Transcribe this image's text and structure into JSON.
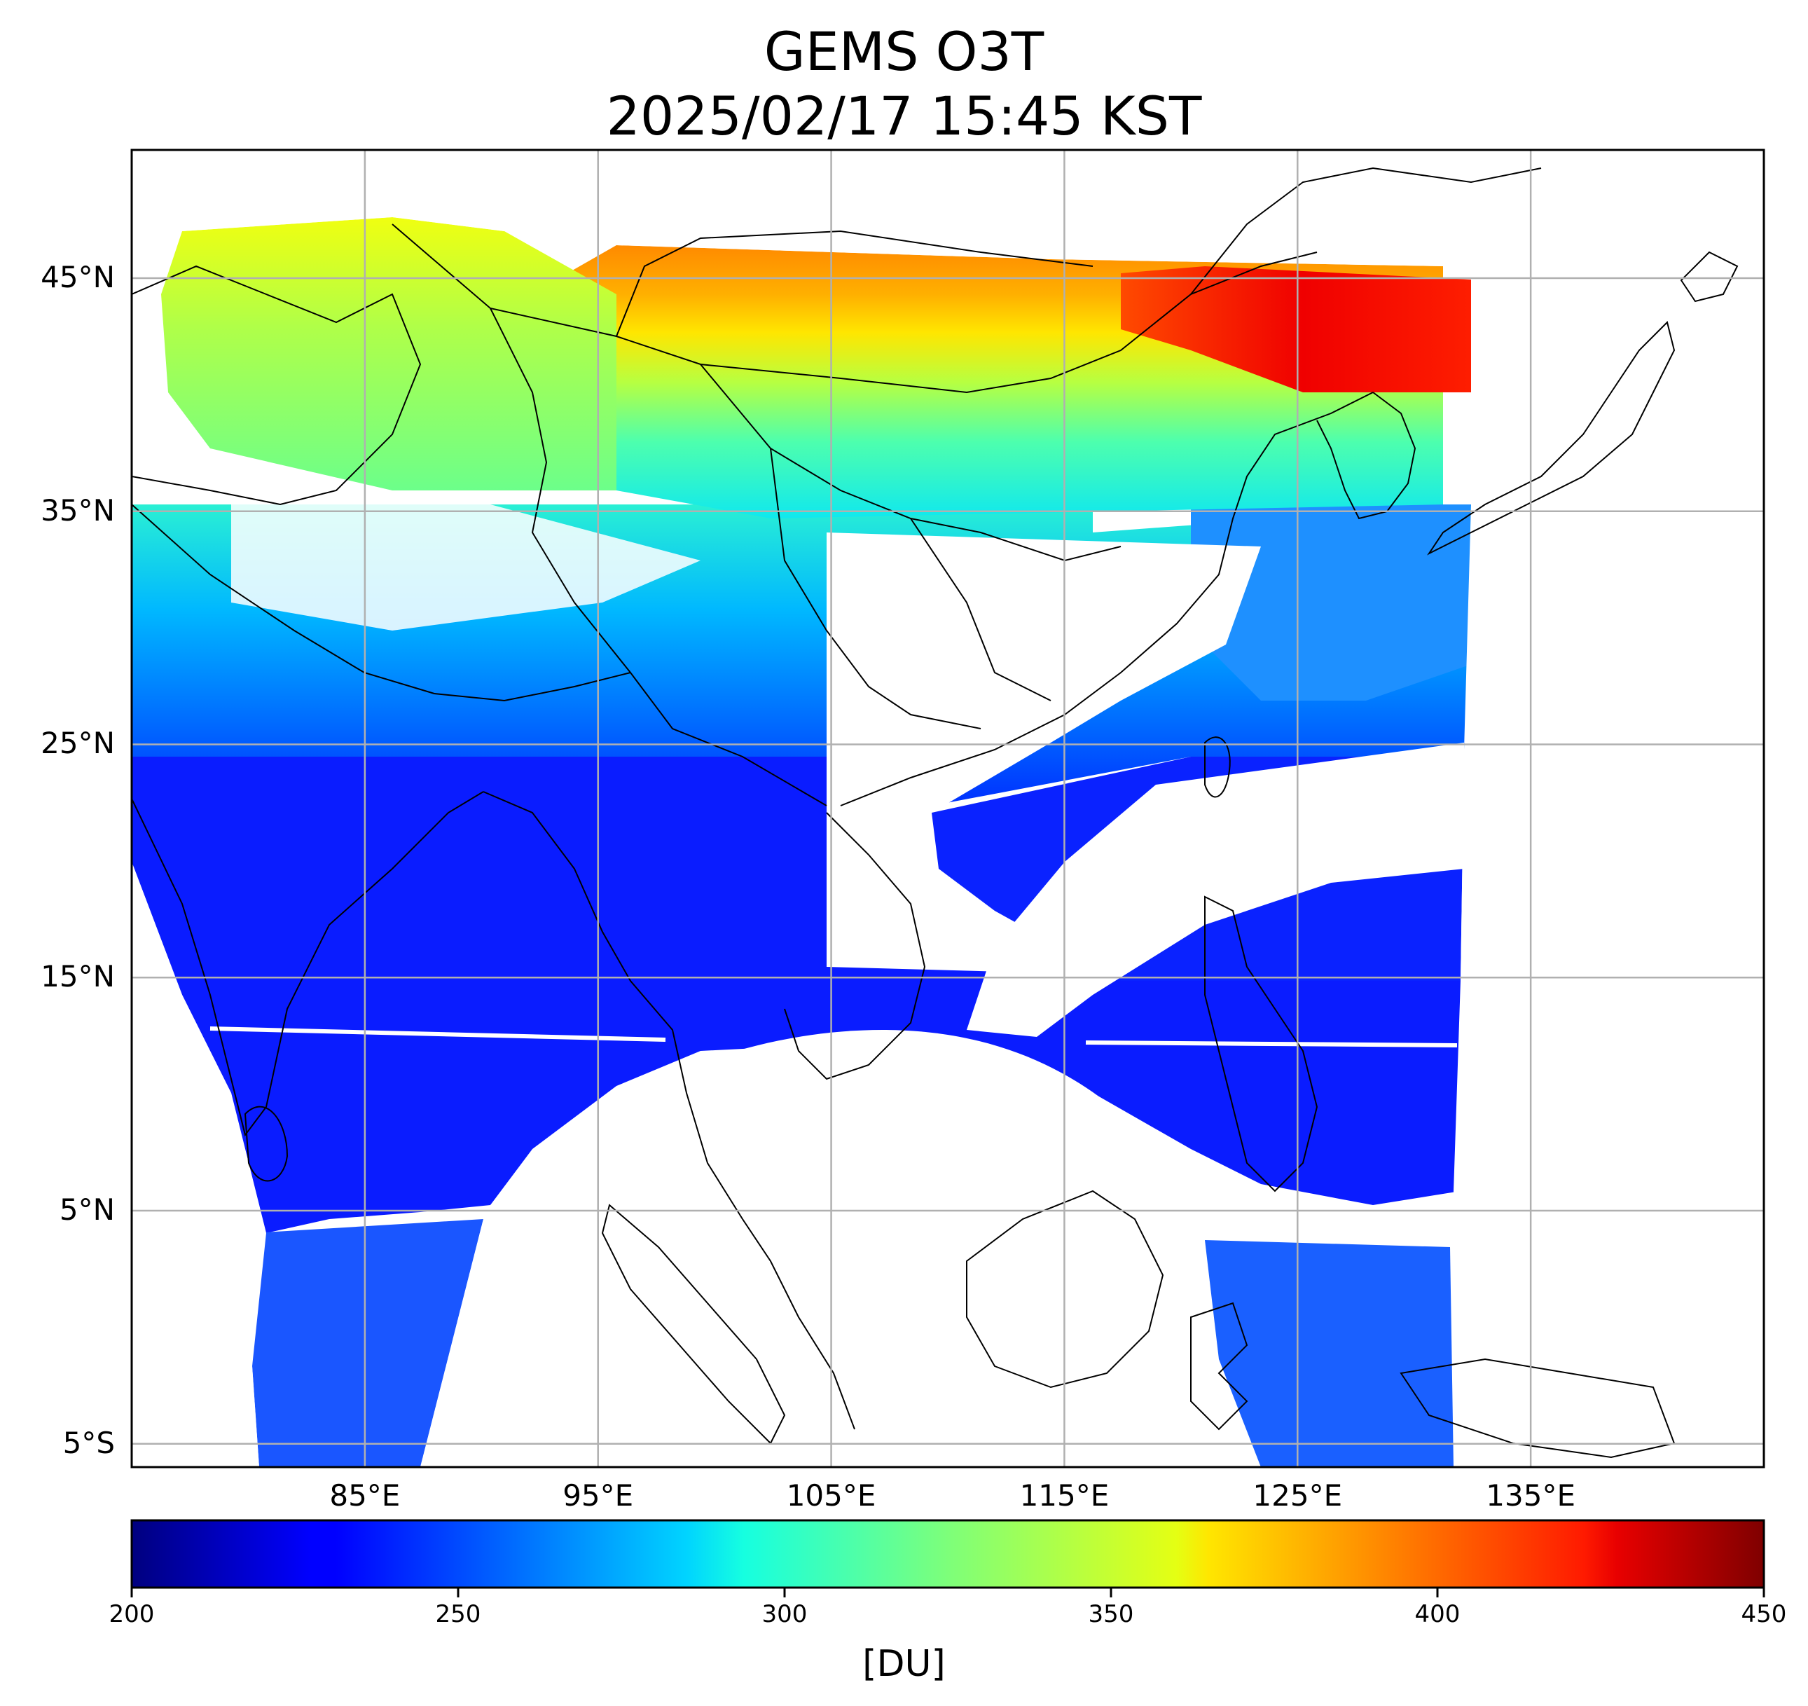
{
  "title": {
    "line1": "GEMS O3T",
    "line2": "2025/02/17 15:45 KST"
  },
  "map": {
    "lon_range": [
      75,
      145
    ],
    "lat_range": [
      -6,
      50.5
    ],
    "lat_ticks": [
      {
        "value": 45,
        "label": "45°N"
      },
      {
        "value": 35,
        "label": "35°N"
      },
      {
        "value": 25,
        "label": "25°N"
      },
      {
        "value": 15,
        "label": "15°N"
      },
      {
        "value": 5,
        "label": "5°N"
      },
      {
        "value": -5,
        "label": "5°S"
      }
    ],
    "lon_ticks": [
      {
        "value": 85,
        "label": "85°E"
      },
      {
        "value": 95,
        "label": "95°E"
      },
      {
        "value": 105,
        "label": "105°E"
      },
      {
        "value": 115,
        "label": "115°E"
      },
      {
        "value": 125,
        "label": "125°E"
      },
      {
        "value": 135,
        "label": "135°E"
      }
    ],
    "grid": true
  },
  "colorbar": {
    "min": 200,
    "max": 450,
    "colormap": "jet",
    "ticks": [
      "200",
      "250",
      "300",
      "350",
      "400",
      "450"
    ],
    "unit_label": "[DU]"
  }
}
